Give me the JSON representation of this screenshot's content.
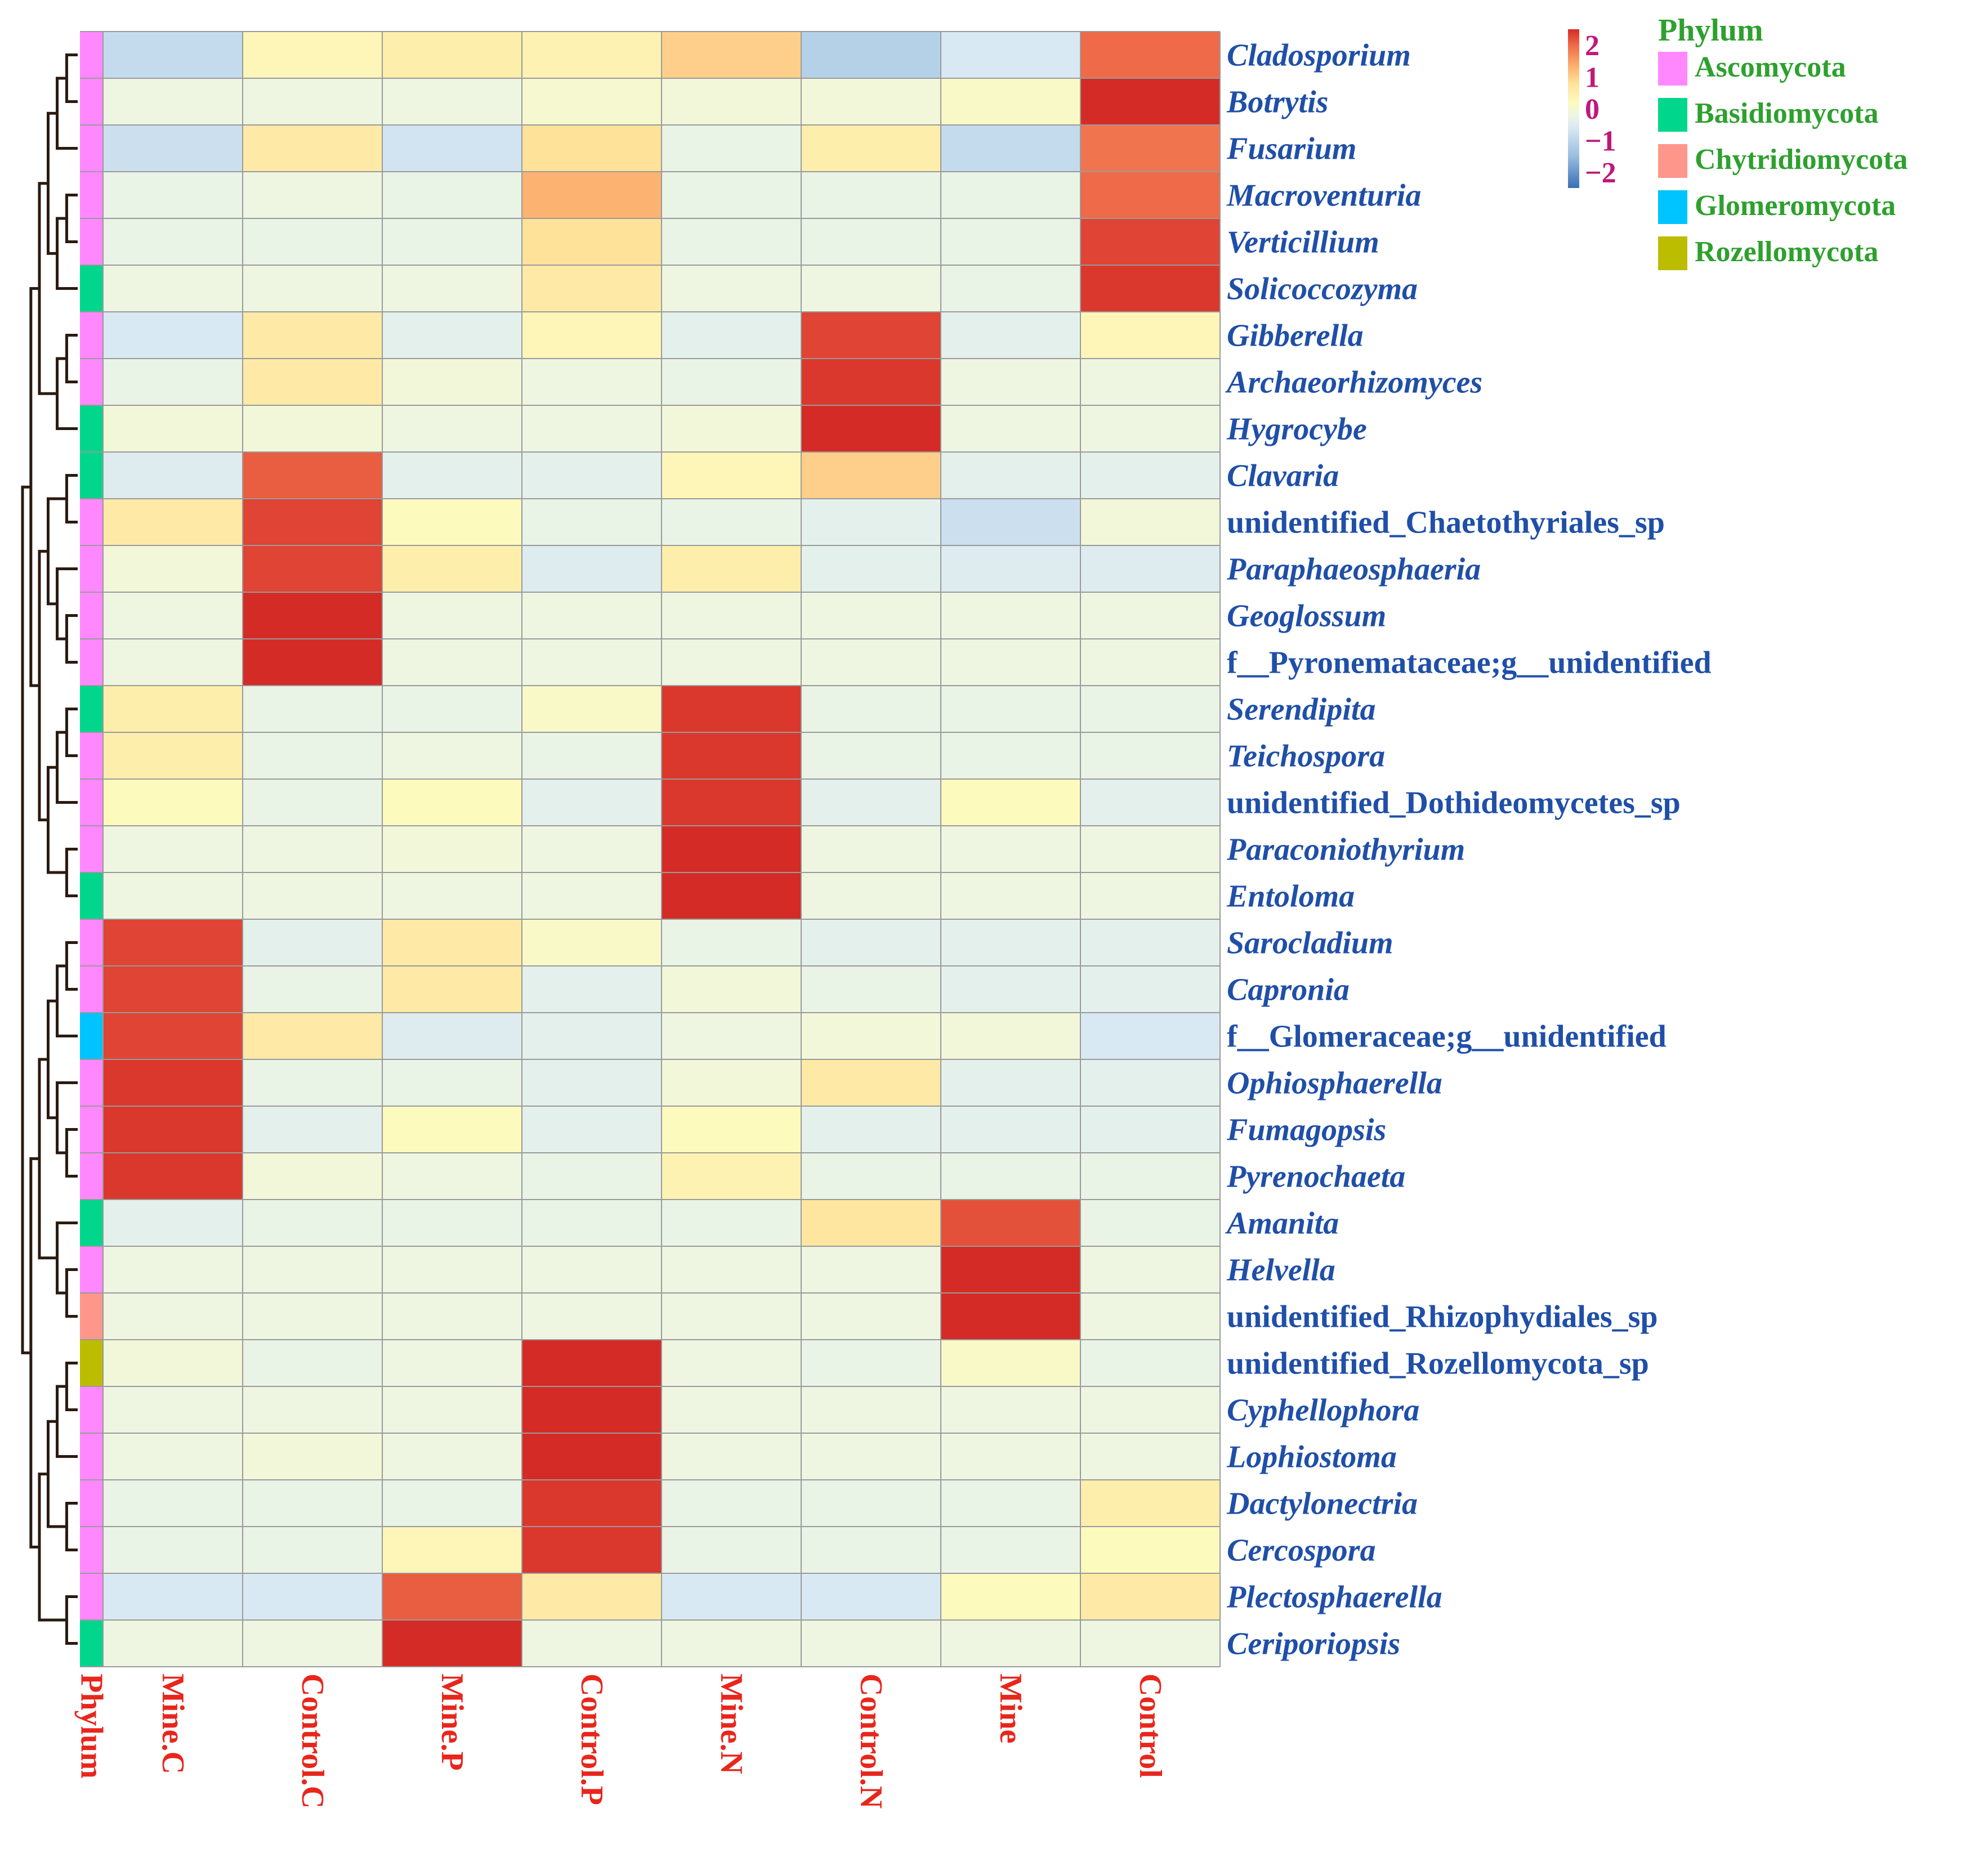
{
  "chart_data": {
    "type": "heatmap",
    "columns": [
      "Mine.C",
      "Control.C",
      "Mine.P",
      "Control.P",
      "Mine.N",
      "Control.N",
      "Mine",
      "Control"
    ],
    "annotation_column_label": "Phylum",
    "rows": [
      {
        "name": "Cladosporium",
        "italic": true,
        "phylum": "Ascomycota",
        "values": [
          -0.9,
          0.3,
          0.5,
          0.4,
          1.0,
          -1.1,
          -0.6,
          2.0
        ]
      },
      {
        "name": "Botrytis",
        "italic": true,
        "phylum": "Ascomycota",
        "values": [
          -0.2,
          -0.2,
          -0.2,
          0.0,
          -0.1,
          -0.1,
          0.1,
          2.5
        ]
      },
      {
        "name": "Fusarium",
        "italic": true,
        "phylum": "Ascomycota",
        "values": [
          -0.8,
          0.6,
          -0.7,
          0.8,
          -0.3,
          0.5,
          -0.9,
          1.9
        ]
      },
      {
        "name": "Macroventuria",
        "italic": true,
        "phylum": "Ascomycota",
        "values": [
          -0.3,
          -0.2,
          -0.3,
          1.3,
          -0.3,
          -0.3,
          -0.3,
          2.0
        ]
      },
      {
        "name": "Verticillium",
        "italic": true,
        "phylum": "Ascomycota",
        "values": [
          -0.3,
          -0.3,
          -0.3,
          0.8,
          -0.3,
          -0.3,
          -0.3,
          2.3
        ]
      },
      {
        "name": "Solicoccozyma",
        "italic": true,
        "phylum": "Basidiomycota",
        "values": [
          -0.2,
          -0.2,
          -0.2,
          0.6,
          -0.2,
          -0.2,
          -0.3,
          2.4
        ]
      },
      {
        "name": "Gibberella",
        "italic": true,
        "phylum": "Ascomycota",
        "values": [
          -0.6,
          0.6,
          -0.4,
          0.3,
          -0.4,
          2.3,
          -0.4,
          0.3
        ]
      },
      {
        "name": "Archaeorhizomyces",
        "italic": true,
        "phylum": "Ascomycota",
        "values": [
          -0.3,
          0.6,
          -0.1,
          -0.2,
          -0.3,
          2.4,
          -0.2,
          -0.2
        ]
      },
      {
        "name": "Hygrocybe",
        "italic": true,
        "phylum": "Basidiomycota",
        "values": [
          -0.1,
          -0.1,
          -0.2,
          -0.2,
          -0.1,
          2.5,
          -0.2,
          -0.2
        ]
      },
      {
        "name": "Clavaria",
        "italic": true,
        "phylum": "Basidiomycota",
        "values": [
          -0.5,
          2.1,
          -0.4,
          -0.4,
          0.3,
          1.0,
          -0.4,
          -0.4
        ]
      },
      {
        "name": "unidentified_Chaetothyriales_sp",
        "italic": false,
        "phylum": "Ascomycota",
        "values": [
          0.6,
          2.3,
          0.2,
          -0.3,
          -0.3,
          -0.4,
          -0.8,
          -0.1
        ]
      },
      {
        "name": "Paraphaeosphaeria",
        "italic": true,
        "phylum": "Ascomycota",
        "values": [
          -0.1,
          2.3,
          0.5,
          -0.5,
          0.5,
          -0.4,
          -0.5,
          -0.5
        ]
      },
      {
        "name": "Geoglossum",
        "italic": true,
        "phylum": "Ascomycota",
        "values": [
          -0.2,
          2.5,
          -0.2,
          -0.2,
          -0.2,
          -0.2,
          -0.2,
          -0.2
        ]
      },
      {
        "name": "f__Pyronemataceae;g__unidentified",
        "italic": false,
        "phylum": "Ascomycota",
        "values": [
          -0.2,
          2.5,
          -0.2,
          -0.2,
          -0.2,
          -0.2,
          -0.2,
          -0.2
        ]
      },
      {
        "name": "Serendipita",
        "italic": true,
        "phylum": "Basidiomycota",
        "values": [
          0.5,
          -0.3,
          -0.3,
          0.1,
          2.4,
          -0.3,
          -0.3,
          -0.3
        ]
      },
      {
        "name": "Teichospora",
        "italic": true,
        "phylum": "Ascomycota",
        "values": [
          0.5,
          -0.3,
          -0.2,
          -0.3,
          2.4,
          -0.3,
          -0.3,
          -0.3
        ]
      },
      {
        "name": "unidentified_Dothideomycetes_sp",
        "italic": false,
        "phylum": "Ascomycota",
        "values": [
          0.2,
          -0.3,
          0.2,
          -0.4,
          2.4,
          -0.4,
          0.2,
          -0.4
        ]
      },
      {
        "name": "Paraconiothyrium",
        "italic": true,
        "phylum": "Ascomycota",
        "values": [
          -0.2,
          -0.2,
          -0.1,
          -0.2,
          2.5,
          -0.2,
          -0.2,
          -0.2
        ]
      },
      {
        "name": "Entoloma",
        "italic": true,
        "phylum": "Basidiomycota",
        "values": [
          -0.2,
          -0.2,
          -0.2,
          -0.2,
          2.5,
          -0.2,
          -0.2,
          -0.2
        ]
      },
      {
        "name": "Sarocladium",
        "italic": true,
        "phylum": "Ascomycota",
        "values": [
          2.3,
          -0.4,
          0.6,
          0.1,
          -0.3,
          -0.4,
          -0.4,
          -0.4
        ]
      },
      {
        "name": "Capronia",
        "italic": true,
        "phylum": "Ascomycota",
        "values": [
          2.3,
          -0.3,
          0.6,
          -0.4,
          -0.1,
          -0.3,
          -0.4,
          -0.4
        ]
      },
      {
        "name": "f__Glomeraceae;g__unidentified",
        "italic": false,
        "phylum": "Glomeromycota",
        "values": [
          2.3,
          0.6,
          -0.5,
          -0.4,
          -0.2,
          -0.1,
          -0.1,
          -0.6
        ]
      },
      {
        "name": "Ophiosphaerella",
        "italic": true,
        "phylum": "Ascomycota",
        "values": [
          2.4,
          -0.3,
          -0.3,
          -0.4,
          -0.1,
          0.6,
          -0.4,
          -0.4
        ]
      },
      {
        "name": "Fumagopsis",
        "italic": true,
        "phylum": "Ascomycota",
        "values": [
          2.4,
          -0.4,
          0.2,
          -0.4,
          0.2,
          -0.4,
          -0.4,
          -0.4
        ]
      },
      {
        "name": "Pyrenochaeta",
        "italic": true,
        "phylum": "Ascomycota",
        "values": [
          2.4,
          -0.1,
          -0.2,
          -0.3,
          0.4,
          -0.3,
          -0.3,
          -0.3
        ]
      },
      {
        "name": "Amanita",
        "italic": true,
        "phylum": "Basidiomycota",
        "values": [
          -0.4,
          -0.3,
          -0.3,
          -0.3,
          -0.3,
          0.7,
          2.2,
          -0.3
        ]
      },
      {
        "name": "Helvella",
        "italic": true,
        "phylum": "Ascomycota",
        "values": [
          -0.2,
          -0.2,
          -0.2,
          -0.2,
          -0.2,
          -0.2,
          2.5,
          -0.2
        ]
      },
      {
        "name": "unidentified_Rhizophydiales_sp",
        "italic": false,
        "phylum": "Chytridiomycota",
        "values": [
          -0.2,
          -0.2,
          -0.2,
          -0.2,
          -0.2,
          -0.2,
          2.5,
          -0.2
        ]
      },
      {
        "name": "unidentified_Rozellomycota_sp",
        "italic": false,
        "phylum": "Rozellomycota",
        "values": [
          -0.1,
          -0.3,
          -0.2,
          2.5,
          -0.2,
          -0.3,
          0.1,
          -0.3
        ]
      },
      {
        "name": "Cyphellophora",
        "italic": true,
        "phylum": "Ascomycota",
        "values": [
          -0.2,
          -0.2,
          -0.2,
          2.5,
          -0.2,
          -0.2,
          -0.2,
          -0.2
        ]
      },
      {
        "name": "Lophiostoma",
        "italic": true,
        "phylum": "Ascomycota",
        "values": [
          -0.2,
          -0.1,
          -0.2,
          2.5,
          -0.2,
          -0.2,
          -0.2,
          -0.2
        ]
      },
      {
        "name": "Dactylonectria",
        "italic": true,
        "phylum": "Ascomycota",
        "values": [
          -0.3,
          -0.3,
          -0.3,
          2.4,
          -0.3,
          -0.3,
          -0.3,
          0.5
        ]
      },
      {
        "name": "Cercospora",
        "italic": true,
        "phylum": "Ascomycota",
        "values": [
          -0.3,
          -0.3,
          0.3,
          2.4,
          -0.3,
          -0.3,
          -0.3,
          0.2
        ]
      },
      {
        "name": "Plectosphaerella",
        "italic": true,
        "phylum": "Ascomycota",
        "values": [
          -0.6,
          -0.6,
          2.1,
          0.6,
          -0.6,
          -0.6,
          0.2,
          0.6
        ]
      },
      {
        "name": "Ceriporiopsis",
        "italic": true,
        "phylum": "Basidiomycota",
        "values": [
          -0.2,
          -0.2,
          2.5,
          -0.2,
          -0.2,
          -0.2,
          -0.2,
          -0.2
        ]
      }
    ],
    "colorbar": {
      "range": [
        -2.5,
        2.5
      ],
      "ticks": [
        "2",
        "1",
        "0",
        "−1",
        "−2"
      ]
    },
    "legend": {
      "title": "Phylum",
      "items": [
        {
          "label": "Ascomycota",
          "color": "#ff88ff"
        },
        {
          "label": "Basidiomycota",
          "color": "#00d68c"
        },
        {
          "label": "Chytridiomycota",
          "color": "#ff968c"
        },
        {
          "label": "Glomeromycota",
          "color": "#00c4ff"
        },
        {
          "label": "Rozellomycota",
          "color": "#bcbc00"
        }
      ]
    }
  }
}
